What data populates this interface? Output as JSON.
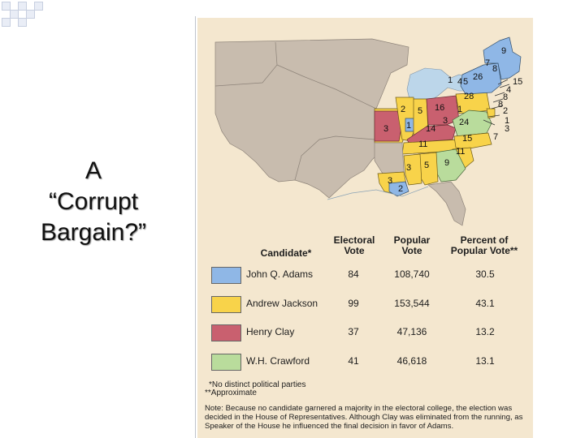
{
  "slide": {
    "title_lines": [
      "A",
      "“Corrupt",
      "Bargain?”"
    ],
    "accent_color": "#c7cfe0"
  },
  "map": {
    "state_labels": [
      "9",
      "7",
      "8",
      "26",
      "15",
      "4",
      "1",
      "4",
      "5",
      "28",
      "8",
      "8",
      "2",
      "2",
      "5",
      "16",
      "1",
      "1",
      "3",
      "14",
      "3",
      "24",
      "1",
      "3",
      "7",
      "11",
      "15",
      "11",
      "3",
      "5",
      "9",
      "3",
      "2"
    ],
    "colors": {
      "adams": "#8fb7e6",
      "jackson": "#f8d34a",
      "clay": "#c9606f",
      "crawford": "#b9dc9c",
      "territory": "#c8bcae",
      "water": "#bcd6ea",
      "background": "#f4e7cf"
    }
  },
  "legend": {
    "headers": {
      "candidate": "Candidate*",
      "electoral": [
        "Electoral",
        "Vote"
      ],
      "popular": [
        "Popular",
        "Vote"
      ],
      "percent": [
        "Percent of",
        "Popular Vote**"
      ]
    },
    "rows": [
      {
        "name": "John Q. Adams",
        "electoral": "84",
        "popular": "108,740",
        "percent": "30.5",
        "color": "#8fb7e6"
      },
      {
        "name": "Andrew Jackson",
        "electoral": "99",
        "popular": "153,544",
        "percent": "43.1",
        "color": "#f8d34a"
      },
      {
        "name": "Henry Clay",
        "electoral": "37",
        "popular": "47,136",
        "percent": "13.2",
        "color": "#c9606f"
      },
      {
        "name": "W.H. Crawford",
        "electoral": "41",
        "popular": "46,618",
        "percent": "13.1",
        "color": "#b9dc9c"
      }
    ],
    "footnotes": [
      "*No distinct political parties",
      "**Approximate"
    ],
    "note": "Note: Because no candidate garnered a majority in the electoral college, the election was decided in the House of Representatives. Although Clay was eliminated from the running, as Speaker of the House he influenced the final decision in favor of Adams."
  }
}
